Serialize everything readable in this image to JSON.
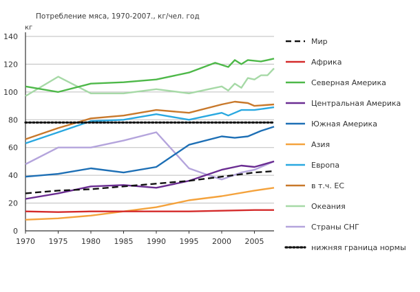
{
  "chart_data": {
    "type": "line",
    "title": "Потребление мяса, 1970-2007., кг/чел. год",
    "ylabel": "кг",
    "xlabel": "",
    "xlim": [
      1970,
      2008
    ],
    "ylim": [
      0,
      140
    ],
    "x_ticks": [
      1970,
      1975,
      1980,
      1985,
      1990,
      1995,
      2000,
      2005
    ],
    "y_ticks": [
      0,
      20,
      40,
      60,
      80,
      100,
      120,
      140
    ],
    "grid": true,
    "legend_position": "right",
    "series": [
      {
        "name": "Мир",
        "color": "#111111",
        "dash": "dashed",
        "points": [
          [
            1970,
            27
          ],
          [
            1975,
            29
          ],
          [
            1980,
            30
          ],
          [
            1985,
            32
          ],
          [
            1990,
            34
          ],
          [
            1995,
            36
          ],
          [
            2000,
            39
          ],
          [
            2005,
            42
          ],
          [
            2008,
            43
          ]
        ]
      },
      {
        "name": "Африка",
        "color": "#d42a2a",
        "dash": "solid",
        "points": [
          [
            1970,
            14
          ],
          [
            1975,
            13.5
          ],
          [
            1980,
            14
          ],
          [
            1985,
            14
          ],
          [
            1990,
            14
          ],
          [
            1995,
            14
          ],
          [
            2000,
            14.5
          ],
          [
            2005,
            15
          ],
          [
            2008,
            15
          ]
        ]
      },
      {
        "name": "Северная Америка",
        "color": "#4db848",
        "dash": "solid",
        "points": [
          [
            1970,
            104
          ],
          [
            1975,
            100
          ],
          [
            1980,
            106
          ],
          [
            1985,
            107
          ],
          [
            1990,
            109
          ],
          [
            1995,
            114
          ],
          [
            1999,
            121
          ],
          [
            2001,
            118
          ],
          [
            2002,
            123
          ],
          [
            2003,
            120
          ],
          [
            2004,
            123
          ],
          [
            2006,
            122
          ],
          [
            2007,
            123
          ],
          [
            2008,
            124
          ]
        ]
      },
      {
        "name": "Центральная Америка",
        "color": "#6a2c91",
        "dash": "solid",
        "points": [
          [
            1970,
            23
          ],
          [
            1975,
            27
          ],
          [
            1980,
            32
          ],
          [
            1985,
            33
          ],
          [
            1990,
            31
          ],
          [
            1995,
            36
          ],
          [
            2000,
            44
          ],
          [
            2003,
            47
          ],
          [
            2005,
            46
          ],
          [
            2008,
            50
          ]
        ]
      },
      {
        "name": "Южная Америка",
        "color": "#1d6fb5",
        "dash": "solid",
        "points": [
          [
            1970,
            39
          ],
          [
            1975,
            41
          ],
          [
            1980,
            45
          ],
          [
            1985,
            42
          ],
          [
            1990,
            46
          ],
          [
            1995,
            62
          ],
          [
            2000,
            68
          ],
          [
            2002,
            67
          ],
          [
            2004,
            68
          ],
          [
            2006,
            72
          ],
          [
            2008,
            75
          ]
        ]
      },
      {
        "name": "Азия",
        "color": "#f4a23c",
        "dash": "solid",
        "points": [
          [
            1970,
            8
          ],
          [
            1975,
            9
          ],
          [
            1980,
            11
          ],
          [
            1985,
            14
          ],
          [
            1990,
            17
          ],
          [
            1995,
            22
          ],
          [
            2000,
            25
          ],
          [
            2005,
            29
          ],
          [
            2008,
            31
          ]
        ]
      },
      {
        "name": "Европа",
        "color": "#29a8e0",
        "dash": "solid",
        "points": [
          [
            1970,
            63
          ],
          [
            1975,
            71
          ],
          [
            1980,
            79
          ],
          [
            1985,
            80
          ],
          [
            1990,
            84
          ],
          [
            1995,
            80
          ],
          [
            1998,
            83
          ],
          [
            2000,
            85
          ],
          [
            2001,
            83
          ],
          [
            2002,
            85
          ],
          [
            2003,
            87
          ],
          [
            2005,
            87
          ],
          [
            2008,
            89
          ]
        ]
      },
      {
        "name": "в т.ч. ЕС",
        "color": "#c8782a",
        "dash": "solid",
        "points": [
          [
            1970,
            66
          ],
          [
            1975,
            74
          ],
          [
            1980,
            81
          ],
          [
            1985,
            83
          ],
          [
            1990,
            87
          ],
          [
            1995,
            85
          ],
          [
            2000,
            91
          ],
          [
            2002,
            93
          ],
          [
            2004,
            92
          ],
          [
            2005,
            90
          ],
          [
            2008,
            91
          ]
        ]
      },
      {
        "name": "Океания",
        "color": "#a6d9a6",
        "dash": "solid",
        "points": [
          [
            1970,
            97
          ],
          [
            1975,
            111
          ],
          [
            1980,
            99
          ],
          [
            1985,
            99
          ],
          [
            1990,
            102
          ],
          [
            1995,
            99
          ],
          [
            1998,
            102
          ],
          [
            2000,
            104
          ],
          [
            2001,
            101
          ],
          [
            2002,
            106
          ],
          [
            2003,
            103
          ],
          [
            2004,
            110
          ],
          [
            2005,
            109
          ],
          [
            2006,
            112
          ],
          [
            2007,
            112
          ],
          [
            2008,
            117
          ]
        ]
      },
      {
        "name": "Страны СНГ",
        "color": "#b4a4dc",
        "dash": "solid",
        "points": [
          [
            1970,
            48
          ],
          [
            1975,
            60
          ],
          [
            1980,
            60
          ],
          [
            1985,
            65
          ],
          [
            1990,
            71
          ],
          [
            1995,
            45
          ],
          [
            1998,
            40
          ],
          [
            2000,
            37
          ],
          [
            2003,
            42
          ],
          [
            2005,
            44
          ],
          [
            2008,
            50
          ]
        ]
      },
      {
        "name": "нижняя граница нормы",
        "color": "#111111",
        "dash": "dotted",
        "points": [
          [
            1970,
            78
          ],
          [
            2008,
            78
          ]
        ]
      }
    ]
  }
}
